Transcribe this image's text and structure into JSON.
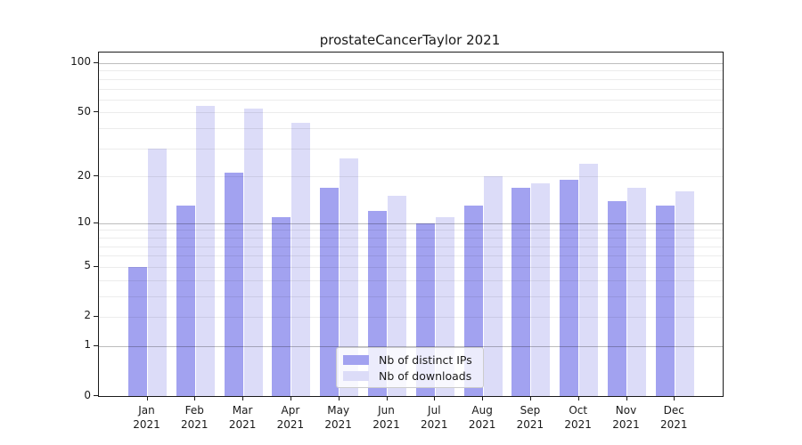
{
  "title": "prostateCancerTaylor 2021",
  "legend": {
    "items": [
      {
        "label": "Nb of distinct IPs",
        "color": "#a2a2f0"
      },
      {
        "label": "Nb of downloads",
        "color": "#dcdcf8"
      }
    ]
  },
  "axes": {
    "ytick_labels": [
      "100",
      "50",
      "20",
      "10",
      "5",
      "2",
      "1",
      "0"
    ],
    "xtick_year": "2021"
  },
  "chart_data": {
    "type": "bar",
    "title": "prostateCancerTaylor 2021",
    "months": [
      "Jan",
      "Feb",
      "Mar",
      "Apr",
      "May",
      "Jun",
      "Jul",
      "Aug",
      "Sep",
      "Oct",
      "Nov",
      "Dec"
    ],
    "year_label": "2021",
    "categories": [
      "Jan 2021",
      "Feb 2021",
      "Mar 2021",
      "Apr 2021",
      "May 2021",
      "Jun 2021",
      "Jul 2021",
      "Aug 2021",
      "Sep 2021",
      "Oct 2021",
      "Nov 2021",
      "Dec 2021"
    ],
    "series": [
      {
        "name": "Nb of distinct IPs",
        "color": "#a2a2f0",
        "values": [
          5,
          13,
          21,
          11,
          17,
          12,
          10,
          13,
          17,
          19,
          14,
          13
        ]
      },
      {
        "name": "Nb of downloads",
        "color": "#dcdcf8",
        "values": [
          30,
          55,
          53,
          43,
          26,
          15,
          11,
          20,
          18,
          24,
          17,
          16
        ]
      }
    ],
    "xlabel": "",
    "ylabel": "",
    "yscale": "log1p",
    "ylim": [
      0,
      115
    ],
    "yticks": [
      0,
      1,
      2,
      5,
      10,
      20,
      50,
      100
    ],
    "grid": true,
    "grid_values": [
      1,
      2,
      3,
      4,
      5,
      6,
      7,
      8,
      9,
      10,
      20,
      30,
      40,
      50,
      60,
      70,
      80,
      90,
      100
    ],
    "major_grid_values": [
      1,
      10,
      100
    ],
    "legend_position": "lower center"
  }
}
